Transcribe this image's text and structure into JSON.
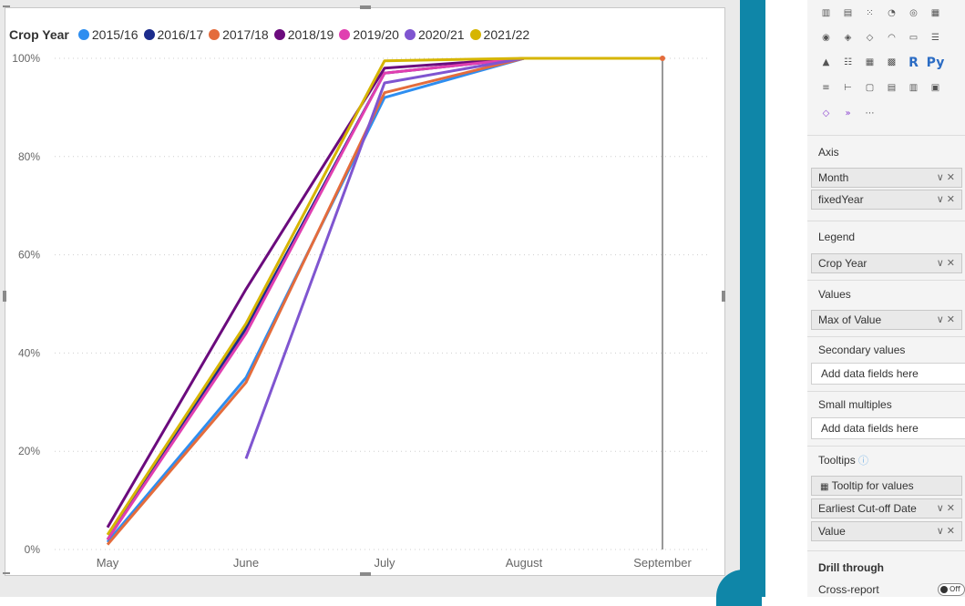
{
  "legend": {
    "title": "Crop Year",
    "items": [
      {
        "label": "2015/16",
        "color": "#2e8ef0"
      },
      {
        "label": "2016/17",
        "color": "#1c2c8c"
      },
      {
        "label": "2017/18",
        "color": "#e46c3c"
      },
      {
        "label": "2018/19",
        "color": "#6b0b7d"
      },
      {
        "label": "2019/20",
        "color": "#e03fb0"
      },
      {
        "label": "2020/21",
        "color": "#7f55d0"
      },
      {
        "label": "2021/22",
        "color": "#d6b500"
      }
    ]
  },
  "chart_data": {
    "type": "line",
    "categories": [
      "May",
      "June",
      "July",
      "August",
      "September"
    ],
    "y_ticks": [
      "0%",
      "20%",
      "40%",
      "60%",
      "80%",
      "100%"
    ],
    "ylim": [
      0,
      100
    ],
    "grid": true,
    "reference_line_at": "September",
    "series": [
      {
        "name": "2015/16",
        "color": "#2e8ef0",
        "values": [
          1.5,
          35,
          92,
          100,
          100
        ]
      },
      {
        "name": "2016/17",
        "color": "#1c2c8c",
        "values": [
          2,
          45,
          97,
          100,
          100
        ]
      },
      {
        "name": "2017/18",
        "color": "#e46c3c",
        "values": [
          1,
          34,
          93,
          100,
          100
        ]
      },
      {
        "name": "2018/19",
        "color": "#6b0b7d",
        "values": [
          4.5,
          53,
          98,
          100,
          100
        ]
      },
      {
        "name": "2019/20",
        "color": "#e03fb0",
        "values": [
          2,
          44,
          97,
          100,
          100
        ]
      },
      {
        "name": "2020/21",
        "color": "#7f55d0",
        "values": [
          null,
          18.5,
          95,
          100,
          100
        ]
      },
      {
        "name": "2021/22",
        "color": "#d6b500",
        "values": [
          3,
          46,
          99.5,
          100,
          100
        ]
      }
    ]
  },
  "pane": {
    "icon_rows": [
      [
        "stacked-column-icon",
        "waterfall-icon",
        "scatter-icon",
        "pie-icon",
        "donut-icon",
        "treemap-icon"
      ],
      [
        "map-icon",
        "filled-map-icon",
        "shape-map-icon",
        "gauge-icon",
        "card-icon",
        "multirow-card-icon"
      ],
      [
        "kpi-icon",
        "slicer-icon",
        "table-icon",
        "matrix-icon",
        "r-visual-icon",
        "python-visual-icon"
      ],
      [
        "key-influencers-icon",
        "decomposition-tree-icon",
        "qa-icon",
        "smart-narrative-icon",
        "paginated-report-icon",
        "power-apps-icon"
      ],
      [
        "power-automate-icon",
        "more-visuals-icon",
        "more-options-icon"
      ]
    ],
    "axis": {
      "label": "Axis",
      "fields": [
        "Month",
        "fixedYear"
      ]
    },
    "legend": {
      "label": "Legend",
      "fields": [
        "Crop Year"
      ]
    },
    "values": {
      "label": "Values",
      "fields": [
        "Max of Value"
      ]
    },
    "secondary": {
      "label": "Secondary values",
      "placeholder": "Add data fields here"
    },
    "small_multiples": {
      "label": "Small multiples",
      "placeholder": "Add data fields here"
    },
    "tooltips": {
      "label": "Tooltips",
      "tooltip_for_values": "Tooltip for values",
      "fields": [
        "Earliest Cut-off Date",
        "Value"
      ]
    },
    "drill_through": {
      "label": "Drill through",
      "cross_report": "Cross-report",
      "toggle": "Off"
    }
  }
}
